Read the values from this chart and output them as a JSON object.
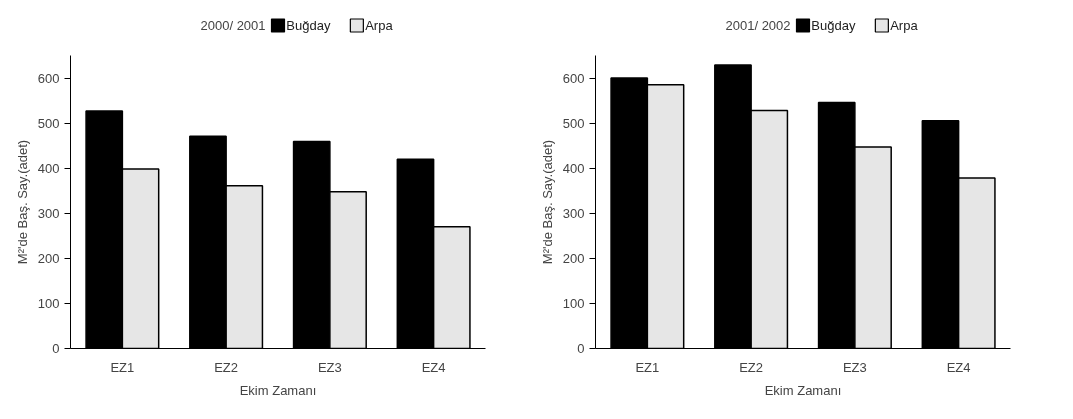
{
  "chart_data": [
    {
      "type": "bar",
      "legend_title": "2000/ 2001",
      "xlabel": "Ekim Zamanı",
      "ylabel": "M²'de Baş. Say.(adet)",
      "categories": [
        "EZ1",
        "EZ2",
        "EZ3",
        "EZ4"
      ],
      "ylim": [
        0,
        650
      ],
      "yticks": [
        0,
        100,
        200,
        300,
        400,
        500,
        600
      ],
      "grid": false,
      "legend": "top",
      "series": [
        {
          "name": "Buğday",
          "color": "#000000",
          "values": [
            527,
            471,
            459,
            420
          ]
        },
        {
          "name": "Arpa",
          "color": "#e6e6e6",
          "values": [
            398,
            361,
            348,
            270
          ]
        }
      ]
    },
    {
      "type": "bar",
      "legend_title": "2001/ 2002",
      "xlabel": "Ekim Zamanı",
      "ylabel": "M²'de Baş. Say.(adet)",
      "categories": [
        "EZ1",
        "EZ2",
        "EZ3",
        "EZ4"
      ],
      "ylim": [
        0,
        650
      ],
      "yticks": [
        0,
        100,
        200,
        300,
        400,
        500,
        600
      ],
      "grid": false,
      "legend": "top",
      "series": [
        {
          "name": "Buğday",
          "color": "#000000",
          "values": [
            600,
            629,
            546,
            505
          ]
        },
        {
          "name": "Arpa",
          "color": "#e6e6e6",
          "values": [
            585,
            528,
            447,
            378
          ]
        }
      ]
    }
  ]
}
